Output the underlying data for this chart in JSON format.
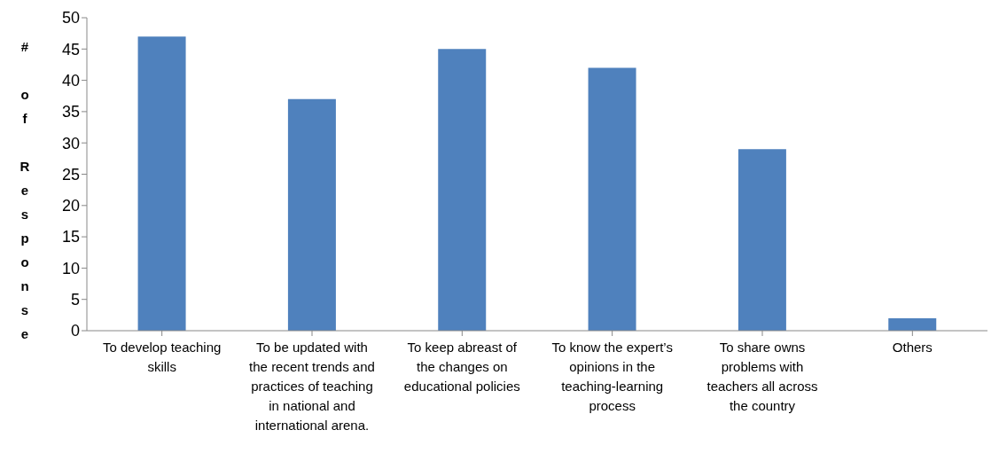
{
  "chart_data": {
    "type": "bar",
    "ylabel": "# of Response",
    "categories": [
      "To develop teaching skills",
      "To be updated with the recent trends and practices of teaching in national and international arena.",
      "To  keep  abreast of the changes on educational policies",
      "To know  the expert’s opinions in the teaching-learning process",
      "To share owns problems with teachers all across the country",
      "Others"
    ],
    "values": [
      47,
      37,
      45,
      42,
      29,
      2
    ],
    "color": "#4f81bd",
    "ylim": [
      0,
      50
    ],
    "yticks": [
      0,
      5,
      10,
      15,
      20,
      25,
      30,
      35,
      40,
      45,
      50
    ],
    "grid": false,
    "legend": false
  }
}
